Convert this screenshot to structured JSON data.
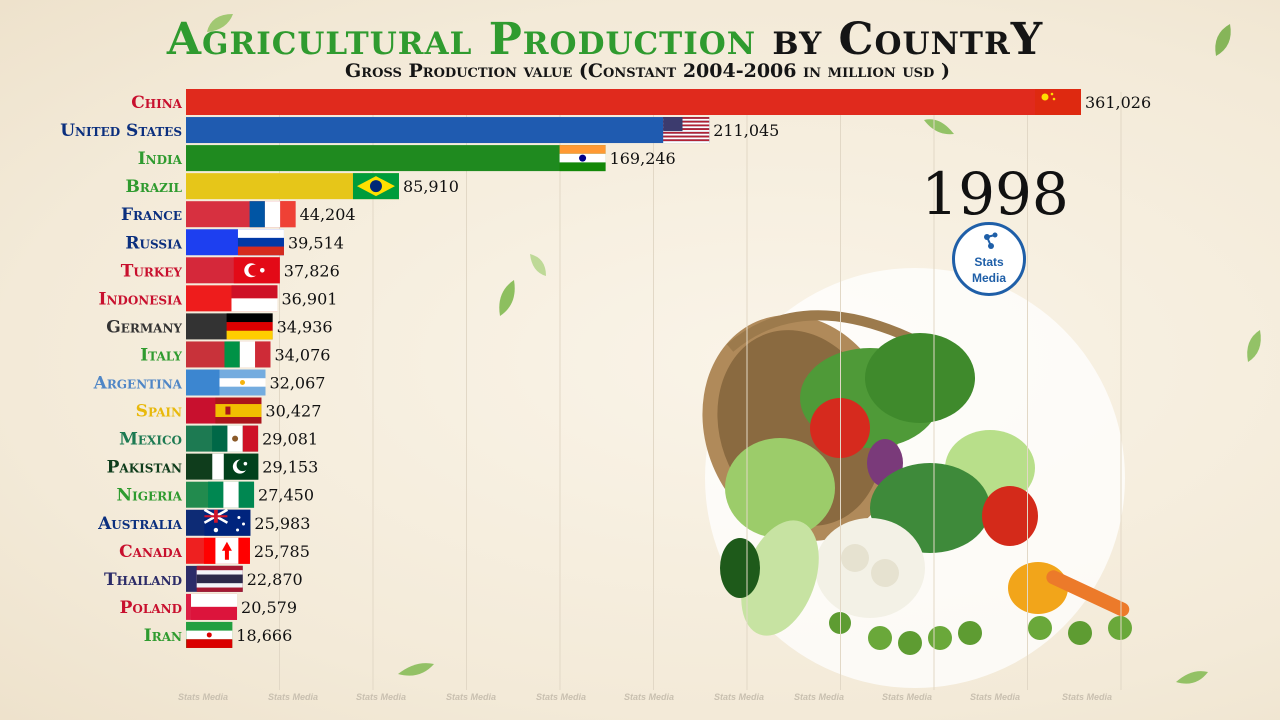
{
  "title": {
    "part1": "Agricultural Production",
    "part2": "by CountrY"
  },
  "subtitle": "Gross Production value (Constant 2004-2006 in million usd )",
  "year": "1998",
  "logo": {
    "line1": "Stats",
    "line2": "Media"
  },
  "watermark": "Stats Media",
  "chart_data": {
    "type": "bar",
    "orientation": "horizontal",
    "title": "Agricultural Production by CountrY",
    "subtitle": "Gross Production value (Constant 2004-2006 in million usd )",
    "grid": true,
    "categories": [
      "China",
      "United States",
      "India",
      "Brazil",
      "France",
      "Russia",
      "Turkey",
      "Indonesia",
      "Germany",
      "Italy",
      "Argentina",
      "Spain",
      "Mexico",
      "Pakistan",
      "Nigeria",
      "Australia",
      "Canada",
      "Thailand",
      "Poland",
      "Iran"
    ],
    "values": [
      361026,
      211045,
      169246,
      85910,
      44204,
      39514,
      37826,
      36901,
      34936,
      34076,
      32067,
      30427,
      29081,
      29153,
      27450,
      25983,
      25785,
      22870,
      20579,
      18666
    ],
    "value_labels": [
      "361,026",
      "211,045",
      "169,246",
      "85,910",
      "44,204",
      "39,514",
      "37,826",
      "36,901",
      "34,936",
      "34,076",
      "32,067",
      "30,427",
      "29,081",
      "29,153",
      "27,450",
      "25,983",
      "25,785",
      "22,870",
      "20,579",
      "18,666"
    ],
    "bar_colors": [
      "#e02a1d",
      "#1f5bb0",
      "#1f8a1f",
      "#e6c619",
      "#d73040",
      "#1d3ff0",
      "#d5283a",
      "#ee1c1c",
      "#333333",
      "#c8323a",
      "#3c86d0",
      "#c8102e",
      "#1d7a52",
      "#0f3d1c",
      "#228b4e",
      "#0d2b75",
      "#ee2020",
      "#2c2c68",
      "#dc1f44",
      "#2da646"
    ],
    "label_colors": [
      "#c8102e",
      "#0b2f7e",
      "#2f9b2f",
      "#2f9b2f",
      "#0b2f7e",
      "#0b2f7e",
      "#c8102e",
      "#c8102e",
      "#333333",
      "#2f9b2f",
      "#4f86c6",
      "#e8b90c",
      "#1d7a52",
      "#0f3d1c",
      "#2f9b2f",
      "#0b2f7e",
      "#c8102e",
      "#2c2c68",
      "#c8102e",
      "#2f9b2f"
    ],
    "flags": [
      "china",
      "usa",
      "india",
      "brazil",
      "france",
      "russia",
      "turkey",
      "indonesia",
      "germany",
      "italy",
      "argentina",
      "spain",
      "mexico",
      "pakistan",
      "nigeria",
      "australia",
      "canada",
      "thailand",
      "poland",
      "iran"
    ]
  }
}
